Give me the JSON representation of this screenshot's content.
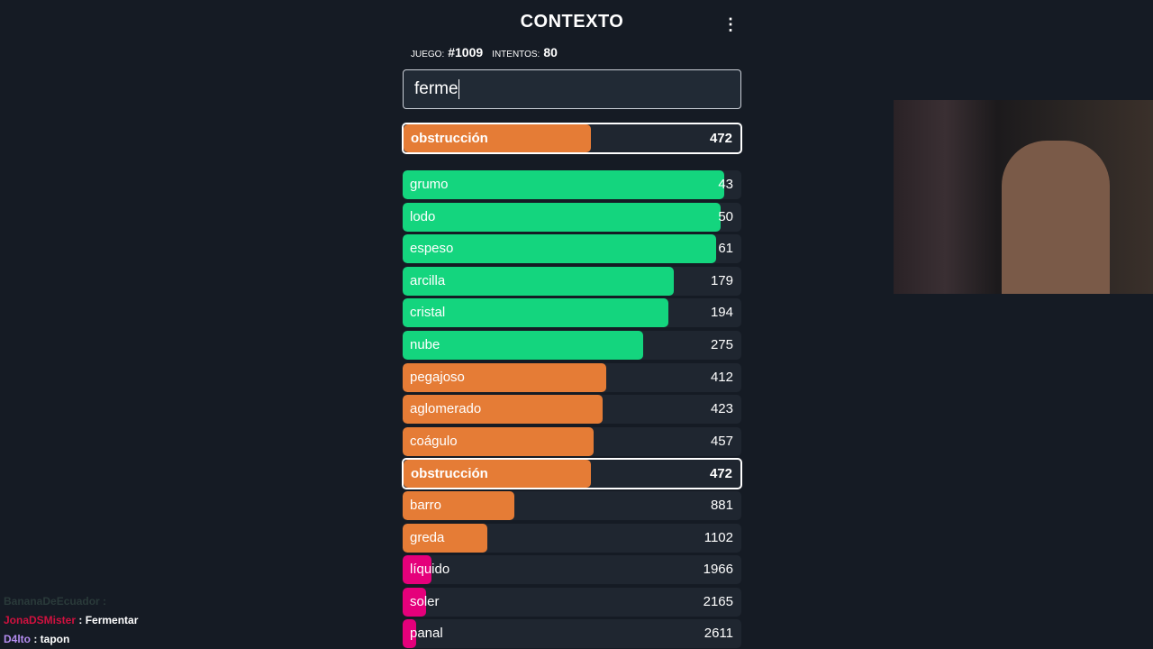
{
  "header": {
    "title": "CONTEXTO",
    "menu_icon": "more-vertical-icon"
  },
  "meta": {
    "game_label": "JUEGO:",
    "game_value": "#1009",
    "attempts_label": "INTENTOS:",
    "attempts_value": "80"
  },
  "input": {
    "value": "ferme"
  },
  "colors": {
    "green": "#14d57e",
    "orange": "#e57c36",
    "pink": "#e5007b"
  },
  "last_guess": {
    "word": "obstrucción",
    "distance": "472",
    "fill_pct": 55.5,
    "color": "orange"
  },
  "guesses": [
    {
      "word": "grumo",
      "distance": "43",
      "fill_pct": 95,
      "color": "green"
    },
    {
      "word": "lodo",
      "distance": "50",
      "fill_pct": 94,
      "color": "green"
    },
    {
      "word": "espeso",
      "distance": "61",
      "fill_pct": 92.5,
      "color": "green"
    },
    {
      "word": "arcilla",
      "distance": "179",
      "fill_pct": 80,
      "color": "green"
    },
    {
      "word": "cristal",
      "distance": "194",
      "fill_pct": 78.5,
      "color": "green"
    },
    {
      "word": "nube",
      "distance": "275",
      "fill_pct": 71,
      "color": "green"
    },
    {
      "word": "pegajoso",
      "distance": "412",
      "fill_pct": 60,
      "color": "orange"
    },
    {
      "word": "aglomerado",
      "distance": "423",
      "fill_pct": 59,
      "color": "orange"
    },
    {
      "word": "coágulo",
      "distance": "457",
      "fill_pct": 56.5,
      "color": "orange"
    },
    {
      "word": "obstrucción",
      "distance": "472",
      "fill_pct": 55.5,
      "color": "orange",
      "highlight": true
    },
    {
      "word": "barro",
      "distance": "881",
      "fill_pct": 33,
      "color": "orange"
    },
    {
      "word": "greda",
      "distance": "1102",
      "fill_pct": 25,
      "color": "orange"
    },
    {
      "word": "líquido",
      "distance": "1966",
      "fill_pct": 8.5,
      "color": "pink"
    },
    {
      "word": "soler",
      "distance": "2165",
      "fill_pct": 7,
      "color": "pink"
    },
    {
      "word": "panal",
      "distance": "2611",
      "fill_pct": 4,
      "color": "pink"
    }
  ],
  "chat": [
    {
      "user": "BananaDeEcuador",
      "text": "",
      "user_color": "#2a3a3a"
    },
    {
      "user": "JonaDSMister",
      "text": "Fermentar",
      "user_color": "#d0113f"
    },
    {
      "user": "D4lto",
      "text": "tapon",
      "user_color": "#b48cf0"
    }
  ]
}
